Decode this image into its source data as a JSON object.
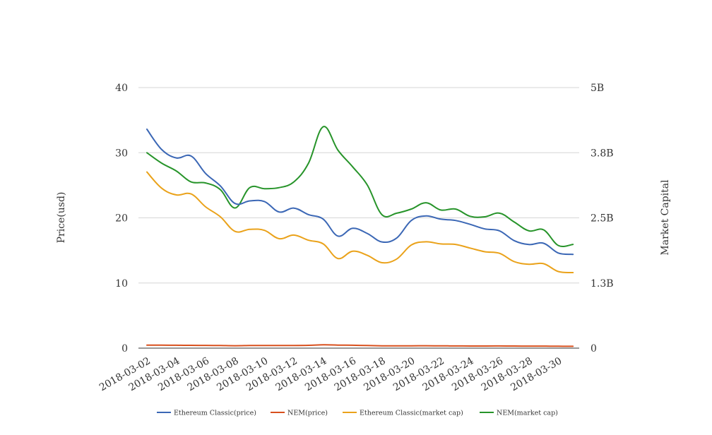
{
  "chart_data": {
    "type": "line",
    "title": "",
    "y_left_label": "Price(usd)",
    "y_right_label": "Market Capital",
    "y_left_ticks": [
      "0",
      "10",
      "20",
      "30",
      "40"
    ],
    "y_right_ticks": [
      "0",
      "1.3B",
      "2.5B",
      "3.8B",
      "5B"
    ],
    "ylim_left": [
      0,
      40
    ],
    "ylim_right": [
      0,
      5000000000
    ],
    "grid": true,
    "legend_position": "bottom",
    "x_tick_labels": [
      "2018-03-02",
      "2018-03-04",
      "2018-03-06",
      "2018-03-08",
      "2018-03-10",
      "2018-03-12",
      "2018-03-14",
      "2018-03-16",
      "2018-03-18",
      "2018-03-20",
      "2018-03-22",
      "2018-03-24",
      "2018-03-26",
      "2018-03-28",
      "2018-03-30"
    ],
    "x": [
      "2018-03-02",
      "2018-03-03",
      "2018-03-04",
      "2018-03-05",
      "2018-03-06",
      "2018-03-07",
      "2018-03-08",
      "2018-03-09",
      "2018-03-10",
      "2018-03-11",
      "2018-03-12",
      "2018-03-13",
      "2018-03-14",
      "2018-03-15",
      "2018-03-16",
      "2018-03-17",
      "2018-03-18",
      "2018-03-19",
      "2018-03-20",
      "2018-03-21",
      "2018-03-22",
      "2018-03-23",
      "2018-03-24",
      "2018-03-25",
      "2018-03-26",
      "2018-03-27",
      "2018-03-28",
      "2018-03-29",
      "2018-03-30",
      "2018-03-31"
    ],
    "series": [
      {
        "name": "Ethereum Classic(price)",
        "axis": "left",
        "color": "#3b67b5",
        "values": [
          33.6,
          30.5,
          29.2,
          29.5,
          26.8,
          24.9,
          22.2,
          22.6,
          22.5,
          20.9,
          21.5,
          20.5,
          19.8,
          17.2,
          18.4,
          17.6,
          16.3,
          16.9,
          19.6,
          20.3,
          19.8,
          19.6,
          19.0,
          18.3,
          18.0,
          16.5,
          15.9,
          16.1,
          14.6,
          14.4
        ]
      },
      {
        "name": "NEM(price)",
        "axis": "left",
        "color": "#d8501e",
        "values": [
          0.47,
          0.46,
          0.44,
          0.43,
          0.42,
          0.4,
          0.37,
          0.4,
          0.4,
          0.4,
          0.41,
          0.43,
          0.51,
          0.47,
          0.44,
          0.4,
          0.36,
          0.36,
          0.36,
          0.37,
          0.35,
          0.34,
          0.33,
          0.33,
          0.34,
          0.32,
          0.31,
          0.31,
          0.29,
          0.28
        ]
      },
      {
        "name": "Ethereum Classic(market cap)",
        "axis": "right",
        "color": "#eaa21a",
        "values": [
          3380000000,
          3070000000,
          2940000000,
          2960000000,
          2710000000,
          2520000000,
          2240000000,
          2280000000,
          2260000000,
          2100000000,
          2170000000,
          2070000000,
          2000000000,
          1720000000,
          1860000000,
          1780000000,
          1640000000,
          1710000000,
          1980000000,
          2040000000,
          2000000000,
          1990000000,
          1920000000,
          1850000000,
          1820000000,
          1660000000,
          1610000000,
          1620000000,
          1470000000,
          1450000000
        ]
      },
      {
        "name": "NEM(market cap)",
        "axis": "right",
        "color": "#27942a",
        "values": [
          3750000000,
          3550000000,
          3400000000,
          3190000000,
          3170000000,
          3040000000,
          2690000000,
          3080000000,
          3060000000,
          3080000000,
          3190000000,
          3550000000,
          4250000000,
          3800000000,
          3480000000,
          3130000000,
          2560000000,
          2590000000,
          2670000000,
          2790000000,
          2650000000,
          2670000000,
          2530000000,
          2520000000,
          2590000000,
          2420000000,
          2250000000,
          2270000000,
          1970000000,
          1990000000
        ]
      }
    ]
  }
}
